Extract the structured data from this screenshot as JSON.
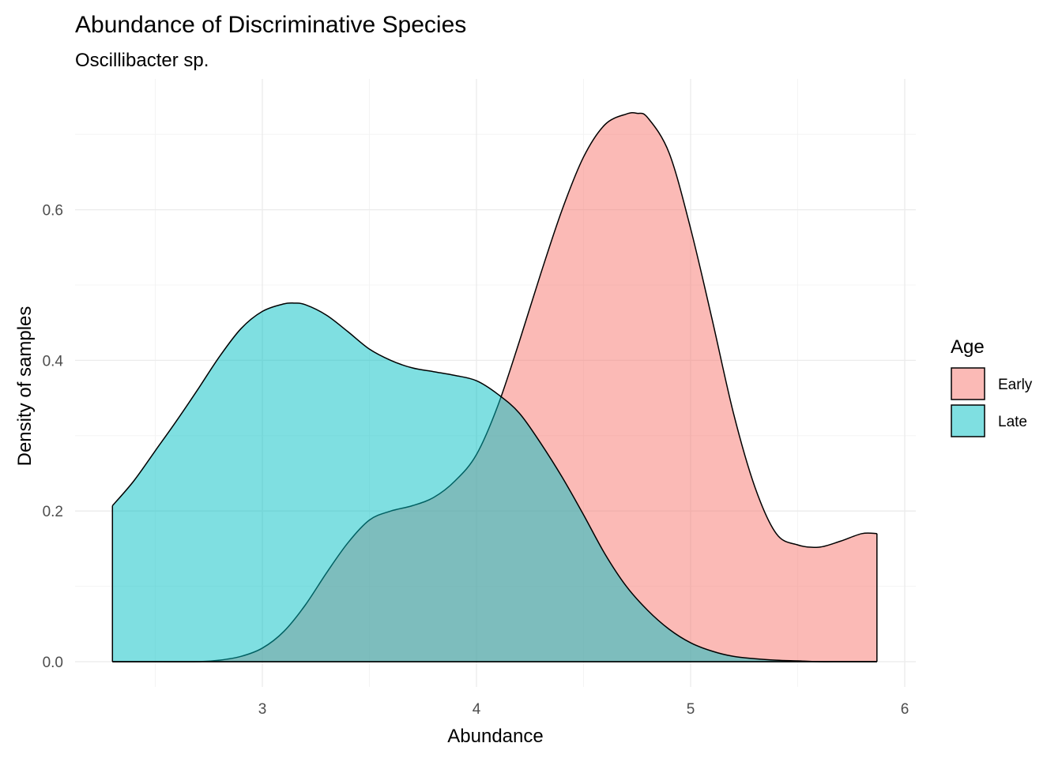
{
  "chart_data": {
    "type": "area",
    "title": "Abundance of Discriminative Species",
    "subtitle": "Oscillibacter sp.",
    "xlabel": "Abundance",
    "ylabel": "Density of samples",
    "xlim": [
      2.3,
      5.87
    ],
    "ylim": [
      0,
      0.73
    ],
    "x_ticks": [
      3,
      4,
      5,
      6
    ],
    "x_tick_labels": [
      "3",
      "4",
      "5",
      "6"
    ],
    "x_minor_ticks": [
      2.5,
      3.5,
      4.5,
      5.5
    ],
    "y_ticks": [
      0.0,
      0.2,
      0.4,
      0.6
    ],
    "y_tick_labels": [
      "0.0",
      "0.2",
      "0.4",
      "0.6"
    ],
    "y_minor_ticks": [
      0.1,
      0.3,
      0.5,
      0.7
    ],
    "grid": true,
    "legend": {
      "title": "Age",
      "position": "right",
      "entries": [
        "Early",
        "Late"
      ]
    },
    "series": [
      {
        "name": "Early",
        "color": "#F8766D",
        "x": [
          2.3,
          2.5,
          2.7,
          2.8,
          2.9,
          3.0,
          3.1,
          3.2,
          3.3,
          3.4,
          3.5,
          3.6,
          3.7,
          3.8,
          3.9,
          4.0,
          4.1,
          4.2,
          4.3,
          4.4,
          4.5,
          4.6,
          4.7,
          4.75,
          4.8,
          4.9,
          5.0,
          5.1,
          5.2,
          5.3,
          5.4,
          5.5,
          5.6,
          5.7,
          5.8,
          5.87
        ],
        "values": [
          0.0,
          0.0,
          0.0,
          0.002,
          0.007,
          0.018,
          0.04,
          0.075,
          0.118,
          0.158,
          0.188,
          0.2,
          0.207,
          0.218,
          0.24,
          0.275,
          0.34,
          0.425,
          0.515,
          0.6,
          0.67,
          0.713,
          0.727,
          0.728,
          0.722,
          0.675,
          0.575,
          0.455,
          0.33,
          0.232,
          0.17,
          0.155,
          0.152,
          0.16,
          0.17,
          0.17
        ]
      },
      {
        "name": "Late",
        "color": "#00BFC4",
        "x": [
          2.3,
          2.4,
          2.5,
          2.6,
          2.7,
          2.8,
          2.9,
          3.0,
          3.1,
          3.15,
          3.2,
          3.3,
          3.4,
          3.5,
          3.6,
          3.7,
          3.8,
          3.9,
          4.0,
          4.1,
          4.2,
          4.3,
          4.4,
          4.5,
          4.6,
          4.7,
          4.8,
          4.9,
          5.0,
          5.1,
          5.2,
          5.3,
          5.4,
          5.5,
          5.6,
          5.7,
          5.8,
          5.87
        ],
        "values": [
          0.207,
          0.24,
          0.28,
          0.32,
          0.362,
          0.405,
          0.442,
          0.465,
          0.475,
          0.476,
          0.474,
          0.46,
          0.438,
          0.415,
          0.4,
          0.39,
          0.385,
          0.38,
          0.373,
          0.355,
          0.33,
          0.29,
          0.245,
          0.195,
          0.143,
          0.1,
          0.068,
          0.043,
          0.025,
          0.014,
          0.007,
          0.004,
          0.002,
          0.001,
          0.0,
          0.0,
          0.0,
          0.0
        ]
      }
    ]
  }
}
